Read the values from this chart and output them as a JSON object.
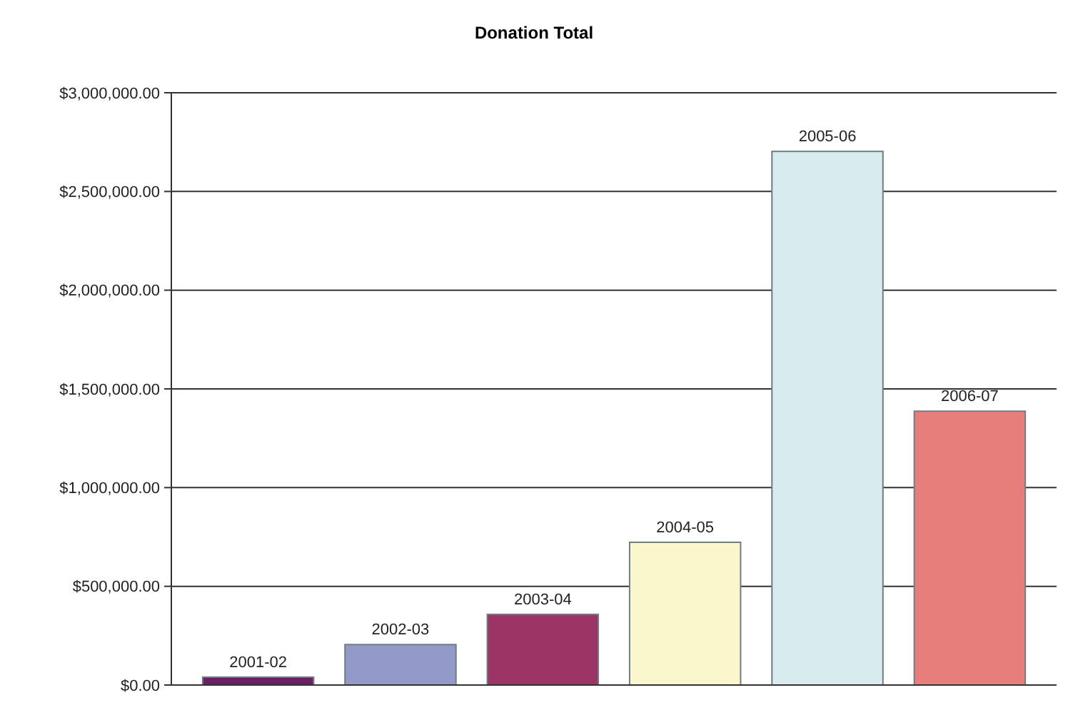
{
  "chart_data": {
    "type": "bar",
    "title": "Donation Total",
    "categories": [
      "2001-02",
      "2002-03",
      "2003-04",
      "2004-05",
      "2005-06",
      "2006-07"
    ],
    "values": [
      40000,
      205000,
      358000,
      723000,
      2703000,
      1387000
    ],
    "colors": [
      "#6b1f63",
      "#9399c9",
      "#9c3566",
      "#faf7cd",
      "#d8ebee",
      "#e87e7b"
    ],
    "ylim": [
      0,
      3000000
    ],
    "yticks": [
      {
        "value": 0,
        "label": "$0.00"
      },
      {
        "value": 500000,
        "label": "$500,000.00"
      },
      {
        "value": 1000000,
        "label": "$1,000,000.00"
      },
      {
        "value": 1500000,
        "label": "$1,500,000.00"
      },
      {
        "value": 2000000,
        "label": "$2,000,000.00"
      },
      {
        "value": 2500000,
        "label": "$2,500,000.00"
      },
      {
        "value": 3000000,
        "label": "$3,000,000.00"
      }
    ],
    "grid": "y"
  }
}
